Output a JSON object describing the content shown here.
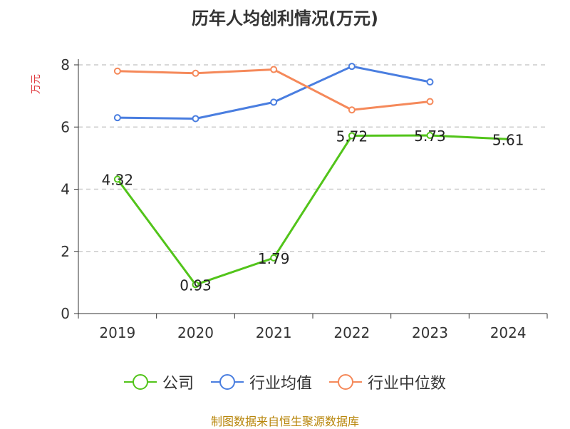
{
  "chart_data": {
    "type": "line",
    "title": "历年人均创利情况(万元)",
    "y_unit": "万元",
    "categories": [
      "2019",
      "2020",
      "2021",
      "2022",
      "2023",
      "2024"
    ],
    "ylim": [
      0,
      8
    ],
    "yticks": [
      0,
      2,
      4,
      6,
      8
    ],
    "grid": true,
    "legend_position": "bottom",
    "series": [
      {
        "name": "公司",
        "color": "#52c41a",
        "values": [
          4.32,
          0.93,
          1.79,
          5.72,
          5.73,
          5.61
        ],
        "labels": [
          "4.32",
          "0.93",
          "1.79",
          "5.72",
          "5.73",
          "5.61"
        ],
        "markers": [
          true,
          true,
          true,
          true,
          true,
          false
        ]
      },
      {
        "name": "行业均值",
        "color": "#4a7ee0",
        "values": [
          6.3,
          6.27,
          6.8,
          7.95,
          7.45,
          null
        ],
        "markers": [
          true,
          true,
          true,
          true,
          true,
          false
        ]
      },
      {
        "name": "行业中位数",
        "color": "#f5895a",
        "values": [
          7.8,
          7.73,
          7.85,
          6.55,
          6.82,
          null
        ],
        "markers": [
          true,
          true,
          true,
          true,
          true,
          false
        ]
      }
    ]
  },
  "source": "制图数据来自恒生聚源数据库"
}
